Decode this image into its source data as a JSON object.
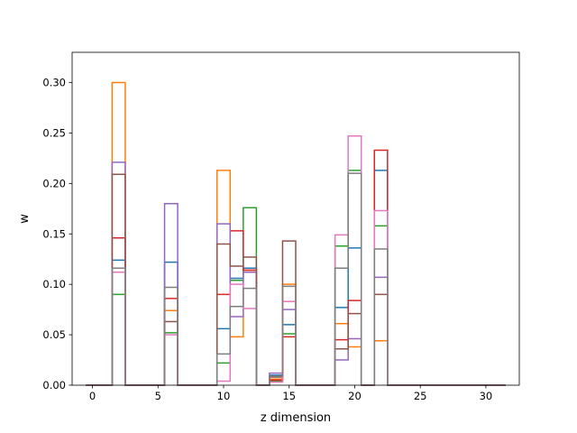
{
  "chart_data": {
    "type": "step",
    "xlabel": "z dimension",
    "ylabel": "w",
    "xlim": [
      -1.55,
      32.55
    ],
    "ylim": [
      0,
      0.33
    ],
    "x_ticks": [
      0,
      5,
      10,
      15,
      20,
      25,
      30
    ],
    "x_tick_labels": [
      "0",
      "5",
      "10",
      "15",
      "20",
      "25",
      "30"
    ],
    "y_ticks": [
      0,
      0.05,
      0.1,
      0.15,
      0.2,
      0.25,
      0.3
    ],
    "y_tick_labels": [
      "0.00",
      "0.05",
      "0.10",
      "0.15",
      "0.20",
      "0.25",
      "0.30"
    ],
    "bin_edges": [
      0,
      1,
      2,
      3,
      4,
      5,
      6,
      7,
      8,
      9,
      10,
      11,
      12,
      13,
      14,
      15,
      16,
      17,
      18,
      19,
      20,
      21,
      22,
      23,
      24,
      25,
      26,
      27,
      28,
      29,
      30,
      31
    ],
    "bins_start_at_minus_half": true,
    "grid": false,
    "series": [
      {
        "color": "#1f77b4",
        "values": {
          "2": 0.124,
          "6": 0.122,
          "10": 0.056,
          "11": 0.106,
          "12": 0.116,
          "14": 0.01,
          "15": 0.06,
          "19": 0.077,
          "20": 0.136,
          "22": 0.213
        }
      },
      {
        "color": "#ff7f0e",
        "values": {
          "2": 0.3,
          "6": 0.074,
          "10": 0.213,
          "11": 0.048,
          "12": 0.114,
          "14": 0.006,
          "15": 0.1,
          "19": 0.061,
          "20": 0.038,
          "22": 0.044
        }
      },
      {
        "color": "#2ca02c",
        "values": {
          "2": 0.09,
          "6": 0.052,
          "10": 0.022,
          "11": 0.104,
          "12": 0.176,
          "14": 0.004,
          "15": 0.051,
          "19": 0.138,
          "20": 0.213,
          "22": 0.158
        }
      },
      {
        "color": "#d62728",
        "values": {
          "2": 0.146,
          "6": 0.086,
          "10": 0.09,
          "11": 0.153,
          "12": 0.114,
          "14": 0.005,
          "15": 0.048,
          "19": 0.045,
          "20": 0.084,
          "22": 0.233
        }
      },
      {
        "color": "#9467bd",
        "values": {
          "2": 0.221,
          "6": 0.18,
          "10": 0.16,
          "11": 0.068,
          "12": 0.112,
          "14": 0.012,
          "15": 0.075,
          "19": 0.025,
          "20": 0.046,
          "22": 0.107
        }
      },
      {
        "color": "#8c564b",
        "values": {
          "2": 0.209,
          "6": 0.063,
          "10": 0.14,
          "11": 0.118,
          "12": 0.127,
          "14": 0.008,
          "15": 0.143,
          "19": 0.036,
          "20": 0.071,
          "22": 0.09
        }
      },
      {
        "color": "#e377c2",
        "values": {
          "2": 0.112,
          "6": 0.05,
          "10": 0.004,
          "11": 0.1,
          "12": 0.076,
          "14": 0.003,
          "15": 0.083,
          "19": 0.149,
          "20": 0.247,
          "22": 0.173
        }
      },
      {
        "color": "#7f7f7f",
        "values": {
          "2": 0.116,
          "6": 0.097,
          "10": 0.031,
          "11": 0.078,
          "12": 0.096,
          "14": 0.009,
          "15": 0.098,
          "19": 0.116,
          "20": 0.21,
          "22": 0.135
        }
      }
    ]
  }
}
